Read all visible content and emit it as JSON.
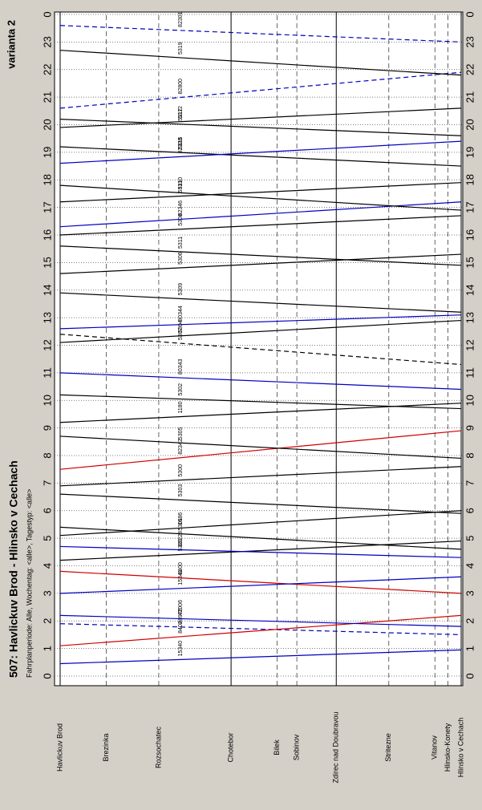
{
  "chart_data": {
    "type": "timetable",
    "title": "507: Havlickuv Brod - Hlinsko v Cechach",
    "subtitle": "Fahrplanperiode: Alle, Wochentag: <alle>, Tagestyp: <alle>",
    "annotation": "varianta 2",
    "stations": [
      {
        "name": "Havlickuv Brod",
        "km": 0,
        "major": true
      },
      {
        "name": "Brezinka",
        "km": 7,
        "major": false
      },
      {
        "name": "Rozsochatec",
        "km": 15,
        "major": false
      },
      {
        "name": "Chotebor",
        "km": 26,
        "major": true
      },
      {
        "name": "Bilek",
        "km": 33,
        "major": false
      },
      {
        "name": "Sobinov",
        "km": 36,
        "major": false
      },
      {
        "name": "Zdirec nad Doubravou",
        "km": 42,
        "major": true
      },
      {
        "name": "Stritezne",
        "km": 50,
        "major": false
      },
      {
        "name": "Vitanov",
        "km": 57,
        "major": false
      },
      {
        "name": "Hlinsko-Konety",
        "km": 59,
        "major": false
      },
      {
        "name": "Hlinsko v Cechach",
        "km": 61,
        "major": true
      }
    ],
    "xlim": [
      0,
      61
    ],
    "ylim": [
      0,
      24
    ],
    "yticks": [
      0,
      1,
      2,
      3,
      4,
      5,
      6,
      7,
      8,
      9,
      10,
      11,
      12,
      13,
      14,
      15,
      16,
      17,
      18,
      19,
      20,
      21,
      22,
      23,
      {
        "value": 24,
        "label": "0"
      }
    ],
    "grid": true,
    "trains": [
      {
        "name": "15340",
        "color": "#0000c0",
        "dashed": false,
        "times": [
          0.45,
          0.95
        ]
      },
      {
        "name": "88970",
        "color": "#0000c0",
        "dashed": true,
        "times": [
          1.9,
          1.5
        ]
      },
      {
        "name": "8402",
        "color": "#d00000",
        "dashed": false,
        "times": [
          1.1,
          2.2
        ]
      },
      {
        "name": "42006",
        "color": "#0000c0",
        "dashed": false,
        "times": [
          2.2,
          1.8
        ]
      },
      {
        "name": "8400",
        "color": "#d00000",
        "dashed": false,
        "times": [
          3.8,
          3.0
        ]
      },
      {
        "name": "15341",
        "color": "#0000c0",
        "dashed": false,
        "times": [
          3.0,
          3.6
        ]
      },
      {
        "name": "5320",
        "color": "#000000",
        "dashed": false,
        "times": [
          4.2,
          4.9
        ]
      },
      {
        "name": "80228",
        "color": "#0000c0",
        "dashed": false,
        "times": [
          4.7,
          4.3
        ]
      },
      {
        "name": "5301",
        "color": "#000000",
        "dashed": false,
        "times": [
          5.4,
          4.6
        ]
      },
      {
        "name": "1686",
        "color": "#000000",
        "dashed": false,
        "times": [
          5.1,
          6.0
        ]
      },
      {
        "name": "5303",
        "color": "#000000",
        "dashed": false,
        "times": [
          6.6,
          5.9
        ]
      },
      {
        "name": "5300",
        "color": "#000000",
        "dashed": false,
        "times": [
          6.9,
          7.6
        ]
      },
      {
        "name": "82342",
        "color": "#d00000",
        "dashed": false,
        "times": [
          7.5,
          8.9
        ]
      },
      {
        "name": "5305",
        "color": "#000000",
        "dashed": false,
        "times": [
          8.7,
          7.9
        ]
      },
      {
        "name": "1180",
        "color": "#000000",
        "dashed": false,
        "times": [
          9.2,
          9.9
        ]
      },
      {
        "name": "5302",
        "color": "#000000",
        "dashed": false,
        "times": [
          10.2,
          9.7
        ]
      },
      {
        "name": "80343",
        "color": "#0000c0",
        "dashed": false,
        "times": [
          11.0,
          10.4
        ]
      },
      {
        "name": "5307",
        "color": "#000000",
        "dashed": true,
        "times": [
          12.4,
          11.3
        ]
      },
      {
        "name": "80344",
        "color": "#0000c0",
        "dashed": false,
        "times": [
          12.6,
          13.1
        ]
      },
      {
        "name": "5304",
        "color": "#000000",
        "dashed": false,
        "times": [
          12.1,
          12.9
        ]
      },
      {
        "name": "5309",
        "color": "#000000",
        "dashed": false,
        "times": [
          13.9,
          13.2
        ]
      },
      {
        "name": "5306",
        "color": "#000000",
        "dashed": false,
        "times": [
          14.6,
          15.3
        ]
      },
      {
        "name": "5311",
        "color": "#000000",
        "dashed": false,
        "times": [
          15.6,
          14.9
        ]
      },
      {
        "name": "5308",
        "color": "#000000",
        "dashed": false,
        "times": [
          16.0,
          16.7
        ]
      },
      {
        "name": "82346",
        "color": "#0000c0",
        "dashed": false,
        "times": [
          16.3,
          17.2
        ]
      },
      {
        "name": "5313",
        "color": "#000000",
        "dashed": false,
        "times": [
          17.2,
          17.9
        ]
      },
      {
        "name": "5310",
        "color": "#000000",
        "dashed": false,
        "times": [
          17.8,
          16.9
        ]
      },
      {
        "name": "5315",
        "color": "#000000",
        "dashed": false,
        "times": [
          19.2,
          18.5
        ]
      },
      {
        "name": "82328",
        "color": "#0000c0",
        "dashed": false,
        "times": [
          18.6,
          19.4
        ]
      },
      {
        "name": "5312",
        "color": "#000000",
        "dashed": false,
        "times": [
          19.9,
          20.6
        ]
      },
      {
        "name": "5317",
        "color": "#000000",
        "dashed": false,
        "times": [
          20.2,
          19.6
        ]
      },
      {
        "name": "82800",
        "color": "#0000c0",
        "dashed": true,
        "times": [
          20.6,
          21.9
        ]
      },
      {
        "name": "5319",
        "color": "#000000",
        "dashed": false,
        "times": [
          22.7,
          21.8
        ]
      },
      {
        "name": "82301",
        "color": "#0000c0",
        "dashed": true,
        "times": [
          23.6,
          23.0
        ]
      }
    ]
  }
}
